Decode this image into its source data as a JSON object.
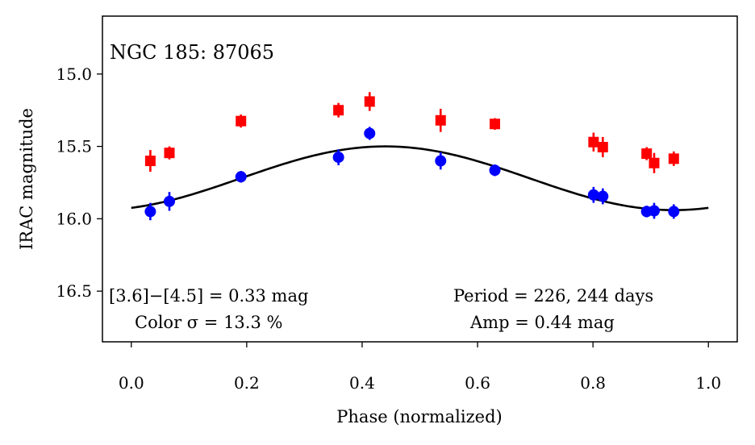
{
  "chart_data": {
    "type": "scatter",
    "title": "NGC 185:  87065",
    "xlabel": "Phase (normalized)",
    "ylabel": "IRAC magnitude",
    "xlim": [
      -0.05,
      1.05
    ],
    "ylim": [
      16.85,
      14.6
    ],
    "y_inverted": true,
    "grid": false,
    "xticks": [
      0.0,
      0.2,
      0.4,
      0.6,
      0.8,
      1.0
    ],
    "xtick_labels": [
      "0.0",
      "0.2",
      "0.4",
      "0.6",
      "0.8",
      "1.0"
    ],
    "yticks": [
      15.0,
      15.5,
      16.0,
      16.5
    ],
    "ytick_labels": [
      "15.0",
      "15.5",
      "16.0",
      "16.5"
    ],
    "series": [
      {
        "name": "[4.5]",
        "marker": "square",
        "color": "#ff0000",
        "x": [
          0.033,
          0.066,
          0.19,
          0.359,
          0.413,
          0.536,
          0.63,
          0.801,
          0.817,
          0.893,
          0.906,
          0.94
        ],
        "y": [
          15.6,
          15.545,
          15.325,
          15.25,
          15.19,
          15.32,
          15.345,
          15.47,
          15.505,
          15.55,
          15.615,
          15.585
        ],
        "err": [
          0.075,
          0.045,
          0.045,
          0.05,
          0.065,
          0.08,
          0.04,
          0.065,
          0.07,
          0.045,
          0.07,
          0.05
        ]
      },
      {
        "name": "[3.6]",
        "marker": "circle",
        "color": "#0000ff",
        "x": [
          0.033,
          0.066,
          0.19,
          0.359,
          0.413,
          0.536,
          0.63,
          0.801,
          0.817,
          0.893,
          0.906,
          0.94
        ],
        "y": [
          15.95,
          15.88,
          15.71,
          15.575,
          15.41,
          15.6,
          15.665,
          15.835,
          15.845,
          15.95,
          15.945,
          15.95
        ],
        "err": [
          0.06,
          0.065,
          0.04,
          0.055,
          0.045,
          0.06,
          0.04,
          0.055,
          0.055,
          0.04,
          0.055,
          0.05
        ]
      },
      {
        "name": "fit",
        "type": "line",
        "color": "#000000",
        "model": "sinusoid",
        "mean": 15.72,
        "amplitude": 0.22,
        "peak_phase": 0.44,
        "x_range": [
          0.0,
          1.0
        ]
      }
    ],
    "annotations": [
      {
        "text": "[3.6]−[4.5] = 0.33 mag",
        "position": "bottom-left"
      },
      {
        "text": "Color σ = 13.3 %",
        "position": "bottom-left"
      },
      {
        "text": "Period = 226, 244 days",
        "position": "bottom-right"
      },
      {
        "text": "Amp = 0.44 mag",
        "position": "bottom-right"
      }
    ]
  }
}
